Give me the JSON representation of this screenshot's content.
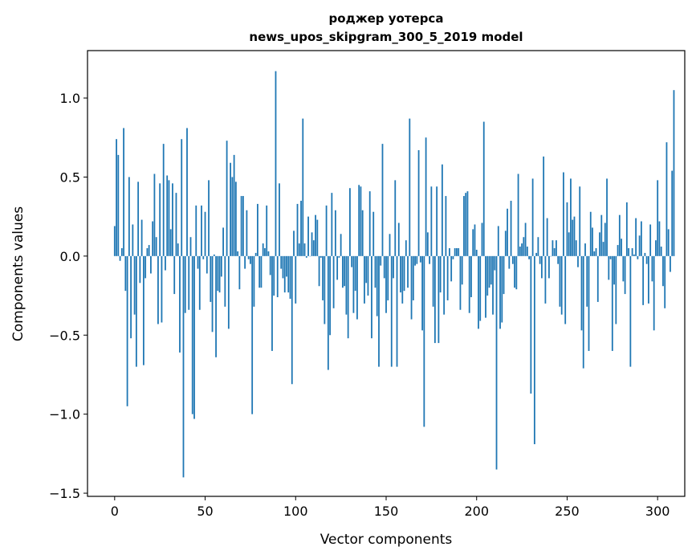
{
  "chart_data": {
    "type": "bar",
    "title": "роджер уотерса",
    "subtitle": "news_upos_skipgram_300_5_2019 model",
    "xlabel": "Vector components",
    "ylabel": "Components values",
    "xlim": [
      -15,
      315
    ],
    "ylim": [
      -1.52,
      1.3
    ],
    "xticks": [
      0,
      50,
      100,
      150,
      200,
      250,
      300
    ],
    "yticks": [
      -1.5,
      -1.0,
      -0.5,
      0.0,
      0.5,
      1.0
    ],
    "ytick_labels": [
      "−1.5",
      "−1.0",
      "−0.5",
      "0.0",
      "0.5",
      "1.0"
    ],
    "grid": false,
    "bar_color": "#1f77b4",
    "values": [
      0.19,
      0.74,
      0.64,
      -0.03,
      0.05,
      0.81,
      -0.22,
      -0.95,
      0.5,
      -0.52,
      0.2,
      -0.37,
      -0.7,
      0.47,
      -0.17,
      0.23,
      -0.69,
      -0.14,
      0.05,
      0.07,
      -0.11,
      0.22,
      0.52,
      0.12,
      -0.43,
      0.46,
      -0.42,
      0.71,
      -0.09,
      0.51,
      0.48,
      0.17,
      0.46,
      -0.24,
      0.4,
      0.08,
      -0.61,
      0.74,
      -1.4,
      -0.36,
      0.81,
      -0.34,
      0.12,
      -1.0,
      -1.03,
      0.32,
      -0.08,
      -0.34,
      0.32,
      -0.02,
      0.28,
      -0.11,
      0.48,
      -0.29,
      -0.48,
      0.01,
      -0.64,
      -0.22,
      -0.23,
      -0.13,
      0.18,
      -0.32,
      0.73,
      -0.46,
      0.59,
      0.5,
      0.64,
      0.47,
      0.03,
      -0.21,
      0.38,
      0.38,
      -0.08,
      0.29,
      -0.02,
      -0.05,
      -1.0,
      -0.32,
      0.02,
      0.33,
      -0.2,
      -0.2,
      0.08,
      0.05,
      0.32,
      0.03,
      -0.12,
      -0.6,
      -0.25,
      1.17,
      -0.26,
      0.46,
      -0.08,
      -0.14,
      -0.23,
      -0.13,
      -0.23,
      -0.27,
      -0.81,
      0.16,
      -0.3,
      0.33,
      0.08,
      0.35,
      0.87,
      0.08,
      -0.01,
      0.25,
      0.0,
      0.15,
      0.1,
      0.26,
      0.23,
      -0.19,
      -0.01,
      -0.28,
      -0.43,
      0.32,
      -0.72,
      -0.5,
      0.4,
      -0.33,
      0.29,
      -0.15,
      -0.01,
      0.14,
      -0.2,
      -0.19,
      -0.37,
      -0.52,
      0.43,
      -0.07,
      -0.36,
      -0.22,
      -0.4,
      0.45,
      0.44,
      0.29,
      -0.3,
      -0.17,
      -0.25,
      0.41,
      -0.52,
      0.28,
      -0.2,
      -0.38,
      -0.7,
      -0.06,
      0.71,
      -0.14,
      -0.36,
      -0.28,
      0.14,
      -0.7,
      -0.14,
      0.48,
      -0.7,
      0.21,
      -0.23,
      -0.3,
      -0.22,
      0.1,
      -0.2,
      0.87,
      -0.4,
      -0.28,
      -0.06,
      -0.05,
      0.67,
      -0.04,
      -0.47,
      -1.08,
      0.75,
      0.15,
      -0.05,
      0.44,
      -0.32,
      -0.55,
      0.44,
      -0.55,
      -0.23,
      0.58,
      -0.37,
      0.38,
      -0.28,
      0.05,
      -0.16,
      -0.02,
      0.05,
      0.05,
      0.05,
      -0.34,
      -0.18,
      0.38,
      0.4,
      0.41,
      -0.36,
      -0.26,
      0.17,
      0.2,
      0.04,
      -0.46,
      -0.41,
      0.21,
      0.85,
      -0.39,
      -0.25,
      -0.2,
      -0.18,
      -0.37,
      -0.09,
      -1.35,
      0.19,
      -0.46,
      -0.42,
      -0.24,
      0.16,
      0.3,
      -0.08,
      0.35,
      -0.05,
      -0.2,
      -0.21,
      0.52,
      0.06,
      0.08,
      0.12,
      0.21,
      0.06,
      -0.02,
      -0.87,
      0.49,
      -1.19,
      0.02,
      0.12,
      -0.05,
      -0.14,
      0.63,
      -0.3,
      0.24,
      -0.14,
      0.0,
      0.1,
      0.05,
      0.1,
      -0.05,
      -0.32,
      -0.37,
      0.53,
      -0.43,
      0.34,
      0.15,
      0.49,
      0.23,
      0.25,
      0.1,
      -0.07,
      0.44,
      -0.47,
      -0.71,
      0.08,
      -0.32,
      -0.6,
      0.28,
      0.18,
      0.03,
      0.05,
      -0.29,
      0.15,
      0.26,
      0.09,
      0.21,
      0.49,
      -0.15,
      -0.02,
      -0.6,
      -0.18,
      -0.43,
      0.07,
      0.26,
      0.11,
      -0.16,
      -0.24,
      0.34,
      0.05,
      -0.7,
      0.05,
      0.01,
      0.24,
      -0.02,
      0.13,
      0.22,
      -0.31,
      0.02,
      -0.05,
      -0.3,
      0.2,
      -0.16,
      -0.47,
      0.1,
      0.48,
      0.22,
      0.06,
      -0.19,
      -0.33,
      0.72,
      0.17,
      -0.1,
      0.54,
      1.05
    ]
  }
}
